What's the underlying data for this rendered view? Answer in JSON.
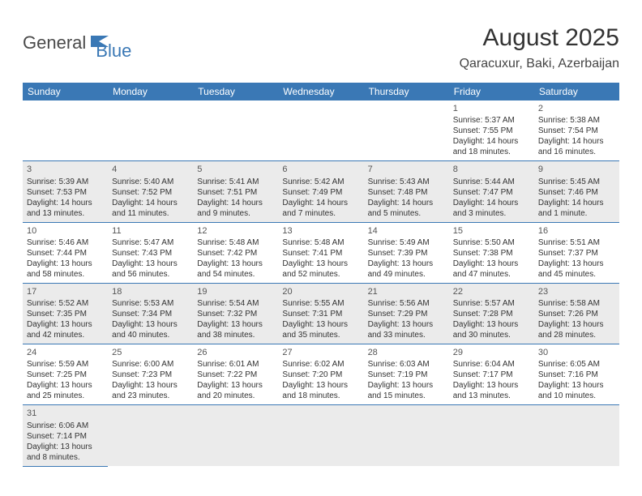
{
  "logo": {
    "part1": "General",
    "part2": "Blue"
  },
  "title": "August 2025",
  "subtitle": "Qaracuxur, Baki, Azerbaijan",
  "calendar": {
    "dayHeaders": [
      "Sunday",
      "Monday",
      "Tuesday",
      "Wednesday",
      "Thursday",
      "Friday",
      "Saturday"
    ],
    "colors": {
      "headerBg": "#3a78b5",
      "headerText": "#ffffff",
      "shadedBg": "#ebebeb",
      "borderColor": "#3a78b5",
      "textColor": "#333333"
    },
    "fontSizes": {
      "title": 30,
      "subtitle": 16,
      "header": 12,
      "cell": 10,
      "daynum": 11
    },
    "startDayIndex": 5,
    "daysInMonth": 31,
    "days": [
      {
        "n": 1,
        "sunrise": "5:37 AM",
        "sunset": "7:55 PM",
        "daylight": "14 hours and 18 minutes."
      },
      {
        "n": 2,
        "sunrise": "5:38 AM",
        "sunset": "7:54 PM",
        "daylight": "14 hours and 16 minutes."
      },
      {
        "n": 3,
        "sunrise": "5:39 AM",
        "sunset": "7:53 PM",
        "daylight": "14 hours and 13 minutes."
      },
      {
        "n": 4,
        "sunrise": "5:40 AM",
        "sunset": "7:52 PM",
        "daylight": "14 hours and 11 minutes."
      },
      {
        "n": 5,
        "sunrise": "5:41 AM",
        "sunset": "7:51 PM",
        "daylight": "14 hours and 9 minutes."
      },
      {
        "n": 6,
        "sunrise": "5:42 AM",
        "sunset": "7:49 PM",
        "daylight": "14 hours and 7 minutes."
      },
      {
        "n": 7,
        "sunrise": "5:43 AM",
        "sunset": "7:48 PM",
        "daylight": "14 hours and 5 minutes."
      },
      {
        "n": 8,
        "sunrise": "5:44 AM",
        "sunset": "7:47 PM",
        "daylight": "14 hours and 3 minutes."
      },
      {
        "n": 9,
        "sunrise": "5:45 AM",
        "sunset": "7:46 PM",
        "daylight": "14 hours and 1 minute."
      },
      {
        "n": 10,
        "sunrise": "5:46 AM",
        "sunset": "7:44 PM",
        "daylight": "13 hours and 58 minutes."
      },
      {
        "n": 11,
        "sunrise": "5:47 AM",
        "sunset": "7:43 PM",
        "daylight": "13 hours and 56 minutes."
      },
      {
        "n": 12,
        "sunrise": "5:48 AM",
        "sunset": "7:42 PM",
        "daylight": "13 hours and 54 minutes."
      },
      {
        "n": 13,
        "sunrise": "5:48 AM",
        "sunset": "7:41 PM",
        "daylight": "13 hours and 52 minutes."
      },
      {
        "n": 14,
        "sunrise": "5:49 AM",
        "sunset": "7:39 PM",
        "daylight": "13 hours and 49 minutes."
      },
      {
        "n": 15,
        "sunrise": "5:50 AM",
        "sunset": "7:38 PM",
        "daylight": "13 hours and 47 minutes."
      },
      {
        "n": 16,
        "sunrise": "5:51 AM",
        "sunset": "7:37 PM",
        "daylight": "13 hours and 45 minutes."
      },
      {
        "n": 17,
        "sunrise": "5:52 AM",
        "sunset": "7:35 PM",
        "daylight": "13 hours and 42 minutes."
      },
      {
        "n": 18,
        "sunrise": "5:53 AM",
        "sunset": "7:34 PM",
        "daylight": "13 hours and 40 minutes."
      },
      {
        "n": 19,
        "sunrise": "5:54 AM",
        "sunset": "7:32 PM",
        "daylight": "13 hours and 38 minutes."
      },
      {
        "n": 20,
        "sunrise": "5:55 AM",
        "sunset": "7:31 PM",
        "daylight": "13 hours and 35 minutes."
      },
      {
        "n": 21,
        "sunrise": "5:56 AM",
        "sunset": "7:29 PM",
        "daylight": "13 hours and 33 minutes."
      },
      {
        "n": 22,
        "sunrise": "5:57 AM",
        "sunset": "7:28 PM",
        "daylight": "13 hours and 30 minutes."
      },
      {
        "n": 23,
        "sunrise": "5:58 AM",
        "sunset": "7:26 PM",
        "daylight": "13 hours and 28 minutes."
      },
      {
        "n": 24,
        "sunrise": "5:59 AM",
        "sunset": "7:25 PM",
        "daylight": "13 hours and 25 minutes."
      },
      {
        "n": 25,
        "sunrise": "6:00 AM",
        "sunset": "7:23 PM",
        "daylight": "13 hours and 23 minutes."
      },
      {
        "n": 26,
        "sunrise": "6:01 AM",
        "sunset": "7:22 PM",
        "daylight": "13 hours and 20 minutes."
      },
      {
        "n": 27,
        "sunrise": "6:02 AM",
        "sunset": "7:20 PM",
        "daylight": "13 hours and 18 minutes."
      },
      {
        "n": 28,
        "sunrise": "6:03 AM",
        "sunset": "7:19 PM",
        "daylight": "13 hours and 15 minutes."
      },
      {
        "n": 29,
        "sunrise": "6:04 AM",
        "sunset": "7:17 PM",
        "daylight": "13 hours and 13 minutes."
      },
      {
        "n": 30,
        "sunrise": "6:05 AM",
        "sunset": "7:16 PM",
        "daylight": "13 hours and 10 minutes."
      },
      {
        "n": 31,
        "sunrise": "6:06 AM",
        "sunset": "7:14 PM",
        "daylight": "13 hours and 8 minutes."
      }
    ]
  }
}
